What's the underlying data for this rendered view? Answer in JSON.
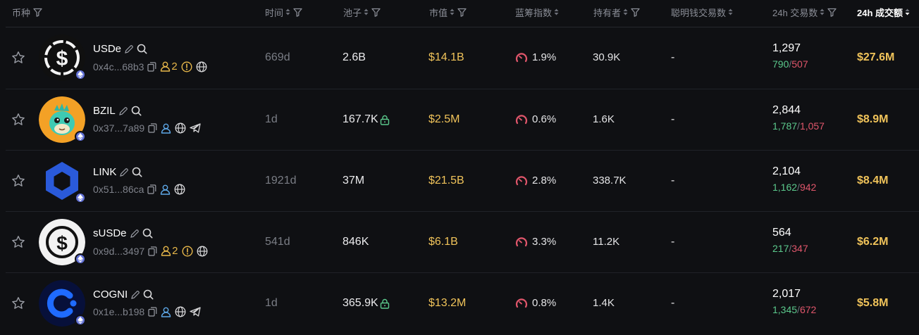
{
  "header": {
    "token": "币种",
    "age": "时间",
    "pool": "池子",
    "mcap": "市值",
    "bluechip": "蓝筹指数",
    "holders": "持有者",
    "smart_money": "聪明钱交易数",
    "tx24": "24h 交易数",
    "vol24": "24h 成交额"
  },
  "colors": {
    "background": "#0f1013",
    "gold": "#f0c35a",
    "buy_green": "#5bc98c",
    "sell_red": "#e0566b",
    "muted": "#7f828b"
  },
  "rows": [
    {
      "symbol": "USDe",
      "address": "0x4c...68b3",
      "holders_badge": "2",
      "age": "669d",
      "pool": "2.6B",
      "pool_locked": false,
      "mcap": "$14.1B",
      "bluechip": "1.9%",
      "holders": "30.9K",
      "smart_money": "-",
      "tx": "1,297",
      "buys": "790",
      "sells": "507",
      "volume": "$27.6M",
      "icons": [
        "edit-icon",
        "search-icon",
        "copy-icon",
        "user-icon",
        "warning-icon",
        "globe-icon"
      ]
    },
    {
      "symbol": "BZIL",
      "address": "0x37...7a89",
      "holders_badge": "",
      "age": "1d",
      "pool": "167.7K",
      "pool_locked": true,
      "mcap": "$2.5M",
      "bluechip": "0.6%",
      "holders": "1.6K",
      "smart_money": "-",
      "tx": "2,844",
      "buys": "1,787",
      "sells": "1,057",
      "volume": "$8.9M",
      "icons": [
        "edit-icon",
        "search-icon",
        "copy-icon",
        "user-icon",
        "globe-icon",
        "telegram-icon"
      ]
    },
    {
      "symbol": "LINK",
      "address": "0x51...86ca",
      "holders_badge": "",
      "age": "1921d",
      "pool": "37M",
      "pool_locked": false,
      "mcap": "$21.5B",
      "bluechip": "2.8%",
      "holders": "338.7K",
      "smart_money": "-",
      "tx": "2,104",
      "buys": "1,162",
      "sells": "942",
      "volume": "$8.4M",
      "icons": [
        "edit-icon",
        "search-icon",
        "copy-icon",
        "user-icon",
        "globe-icon"
      ]
    },
    {
      "symbol": "sUSDe",
      "address": "0x9d...3497",
      "holders_badge": "2",
      "age": "541d",
      "pool": "846K",
      "pool_locked": false,
      "mcap": "$6.1B",
      "bluechip": "3.3%",
      "holders": "11.2K",
      "smart_money": "-",
      "tx": "564",
      "buys": "217",
      "sells": "347",
      "volume": "$6.2M",
      "icons": [
        "edit-icon",
        "search-icon",
        "copy-icon",
        "user-icon",
        "warning-icon",
        "globe-icon"
      ]
    },
    {
      "symbol": "COGNI",
      "address": "0x1e...b198",
      "holders_badge": "",
      "age": "1d",
      "pool": "365.9K",
      "pool_locked": true,
      "mcap": "$13.2M",
      "bluechip": "0.8%",
      "holders": "1.4K",
      "smart_money": "-",
      "tx": "2,017",
      "buys": "1,345",
      "sells": "672",
      "volume": "$5.8M",
      "icons": [
        "edit-icon",
        "search-icon",
        "copy-icon",
        "user-icon",
        "globe-icon",
        "telegram-icon"
      ]
    }
  ]
}
